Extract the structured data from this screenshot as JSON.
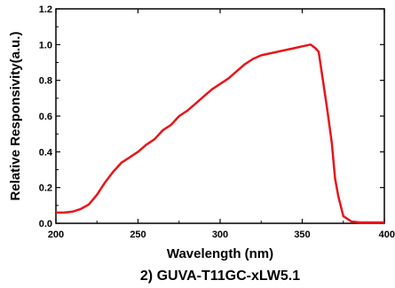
{
  "chart_data": {
    "type": "line",
    "title": "2) GUVA-T11GC-xLW5.1",
    "xlabel": "Wavelength (nm)",
    "ylabel": "Relative Responsivity(a.u.)",
    "xlim": [
      200,
      400
    ],
    "ylim": [
      0,
      1.2
    ],
    "x_ticks": [
      "200",
      "250",
      "300",
      "350",
      "400"
    ],
    "y_ticks": [
      "0.0",
      "0.2",
      "0.4",
      "0.6",
      "0.8",
      "1.0",
      "1.2"
    ],
    "grid": false,
    "line_color": "#e8141b",
    "series": [
      {
        "x": [
          200,
          205,
          210,
          215,
          220,
          225,
          230,
          235,
          240,
          245,
          250,
          255,
          260,
          265,
          270,
          275,
          280,
          285,
          290,
          295,
          300,
          305,
          310,
          315,
          320,
          325,
          330,
          335,
          340,
          345,
          350,
          355,
          358,
          360,
          365,
          368,
          370,
          372,
          375,
          380,
          385,
          390,
          395,
          400
        ],
        "y": [
          0.06,
          0.06,
          0.065,
          0.08,
          0.105,
          0.16,
          0.23,
          0.29,
          0.34,
          0.37,
          0.4,
          0.44,
          0.47,
          0.52,
          0.55,
          0.6,
          0.63,
          0.67,
          0.71,
          0.75,
          0.78,
          0.81,
          0.85,
          0.89,
          0.92,
          0.94,
          0.95,
          0.96,
          0.97,
          0.98,
          0.99,
          1.0,
          0.98,
          0.96,
          0.65,
          0.45,
          0.25,
          0.15,
          0.04,
          0.01,
          0.005,
          0.005,
          0.005,
          0.005
        ]
      }
    ]
  }
}
